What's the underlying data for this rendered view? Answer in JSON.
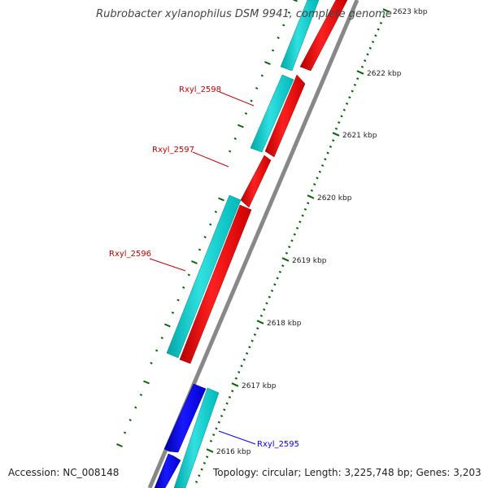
{
  "title": "Rubrobacter xylanophilus DSM 9941, complete genome",
  "accession_line": "Accession: NC_008148",
  "topology_line": "Topology: circular; Length: 3,225,748 bp; Genes: 3,203",
  "colors": {
    "backbone": "#888888",
    "forward_cds": "#ff0000",
    "reverse_cds": "#0000ff",
    "orf": "#00cccc",
    "tick": "#006600",
    "label_forward": "#cc0000",
    "label_reverse": "#0000ff"
  },
  "ticks": [
    {
      "label": "2616 kbp"
    },
    {
      "label": "2617 kbp"
    },
    {
      "label": "2618 kbp"
    },
    {
      "label": "2619 kbp"
    },
    {
      "label": "2620 kbp"
    },
    {
      "label": "2621 kbp"
    },
    {
      "label": "2622 kbp"
    },
    {
      "label": "2623 kbp"
    }
  ],
  "gene_labels": [
    {
      "name": "Rxyl_2598",
      "strand": "forward"
    },
    {
      "name": "Rxyl_2597",
      "strand": "forward"
    },
    {
      "name": "Rxyl_2596",
      "strand": "forward"
    },
    {
      "name": "Rxyl_2595",
      "strand": "reverse"
    }
  ]
}
